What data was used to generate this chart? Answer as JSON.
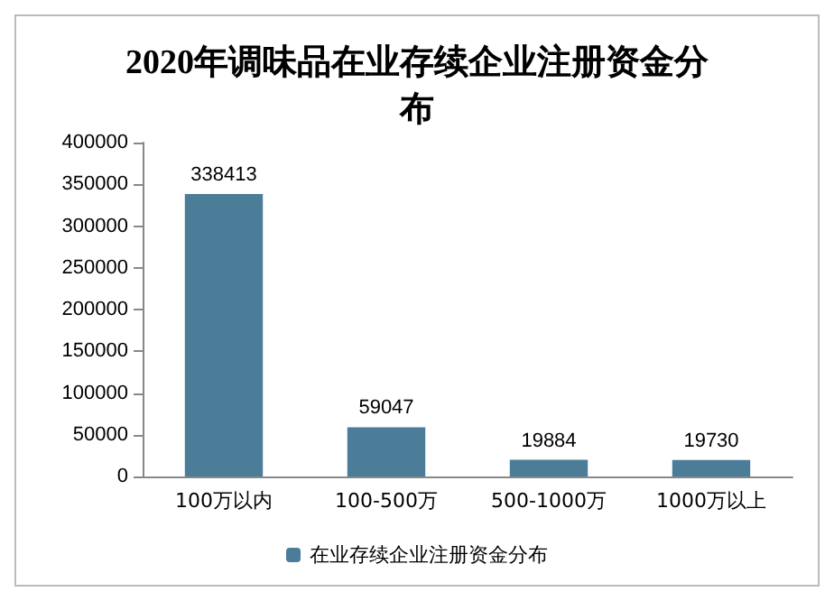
{
  "chart_data": {
    "type": "bar",
    "title": "2020年调味品在业存续企业注册资金分布",
    "categories": [
      "100万以内",
      "100-500万",
      "500-1000万",
      "1000万以上"
    ],
    "series": [
      {
        "name": "在业存续企业注册资金分布",
        "color": "#4b7d99",
        "values": [
          338413,
          59047,
          19884,
          19730
        ]
      }
    ],
    "ylim": [
      0,
      400000
    ],
    "yticks": [
      0,
      50000,
      100000,
      150000,
      200000,
      250000,
      300000,
      350000,
      400000
    ],
    "data_labels": true,
    "grid": false,
    "legend": "bottom"
  }
}
